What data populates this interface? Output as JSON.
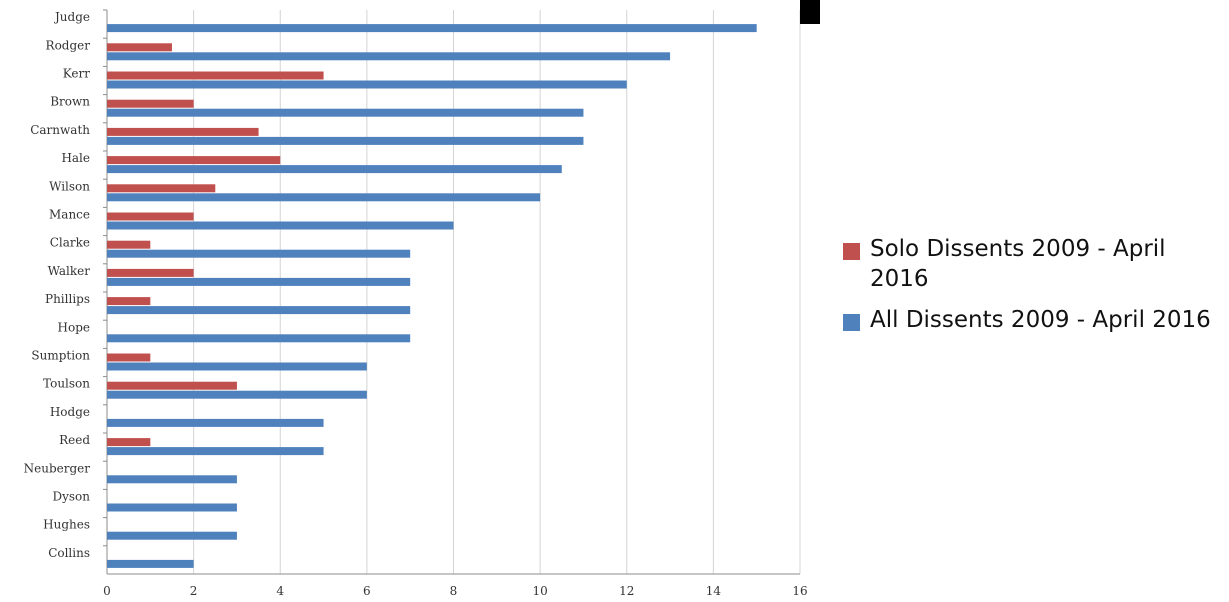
{
  "chart_data": {
    "type": "bar",
    "orientation": "horizontal",
    "categories": [
      "Judge",
      "Rodger",
      "Kerr",
      "Brown",
      "Carnwath",
      "Hale",
      "Wilson",
      "Mance",
      "Clarke",
      "Walker",
      "Phillips",
      "Hope",
      "Sumption",
      "Toulson",
      "Hodge",
      "Reed",
      "Neuberger",
      "Dyson",
      "Hughes",
      "Collins"
    ],
    "series": [
      {
        "name": "Solo Dissents 2009 - April 2016",
        "color": "#c0504d",
        "values": [
          0,
          1.5,
          5,
          2,
          3.5,
          4,
          2.5,
          2,
          1,
          2,
          1,
          0,
          1,
          3,
          0,
          1,
          0,
          0,
          0,
          0
        ]
      },
      {
        "name": "All Dissents 2009 - April 2016",
        "color": "#4f81bd",
        "values": [
          15,
          13,
          12,
          11,
          11,
          10.5,
          10,
          8,
          7,
          7,
          7,
          7,
          6,
          6,
          5,
          5,
          3,
          3,
          3,
          2
        ]
      }
    ],
    "xlim": [
      0,
      16
    ],
    "x_ticks": [
      "0",
      "2",
      "4",
      "6",
      "8",
      "10",
      "12",
      "14",
      "16"
    ],
    "grid": "vertical",
    "legend_position": "right",
    "title": "",
    "xlabel": "",
    "ylabel": ""
  }
}
